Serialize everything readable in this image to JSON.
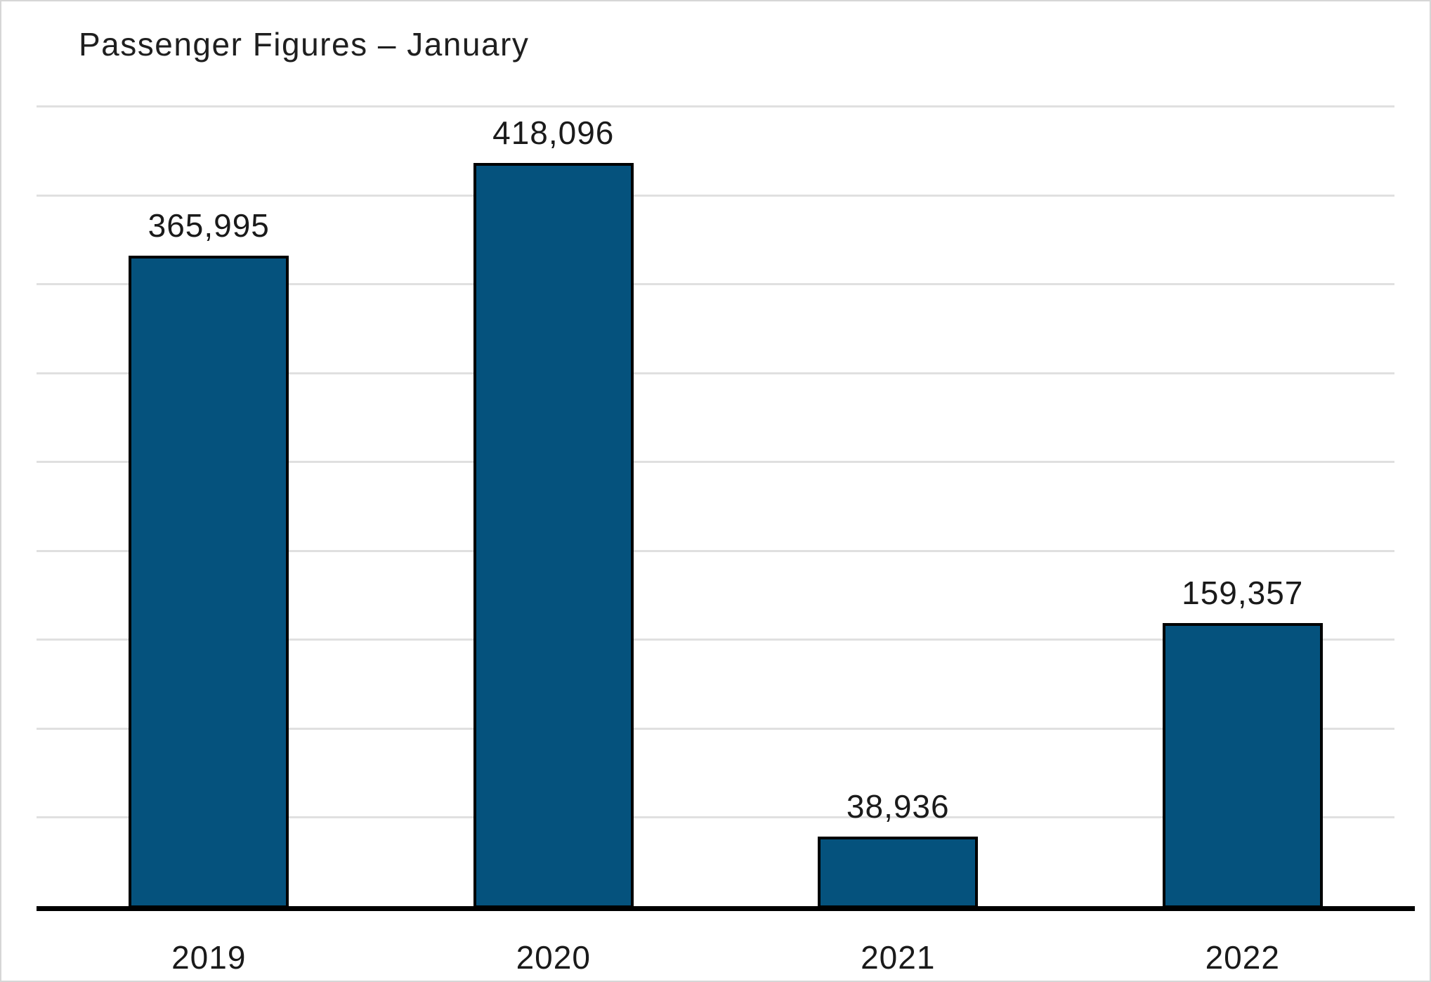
{
  "chart_data": {
    "type": "bar",
    "title": "Passenger Figures – January",
    "categories": [
      "2019",
      "2020",
      "2021",
      "2022"
    ],
    "values": [
      365995,
      418096,
      38936,
      159357
    ],
    "value_labels": [
      "365,995",
      "418,096",
      "38,936",
      "159,357"
    ],
    "xlabel": "",
    "ylabel": "",
    "ylim": [
      0,
      450000
    ],
    "grid_interval": 50000,
    "grid": "horizontal-only",
    "y_tick_labels_visible": false,
    "legend_position": "none",
    "colors": {
      "bar_fill": "#05527D",
      "bar_border": "#000000",
      "axis_line": "#000000",
      "gridline": "#e0e0e0",
      "text": "#1a1a1a",
      "background": "#ffffff",
      "canvas_border": "#d6d6d6"
    }
  }
}
